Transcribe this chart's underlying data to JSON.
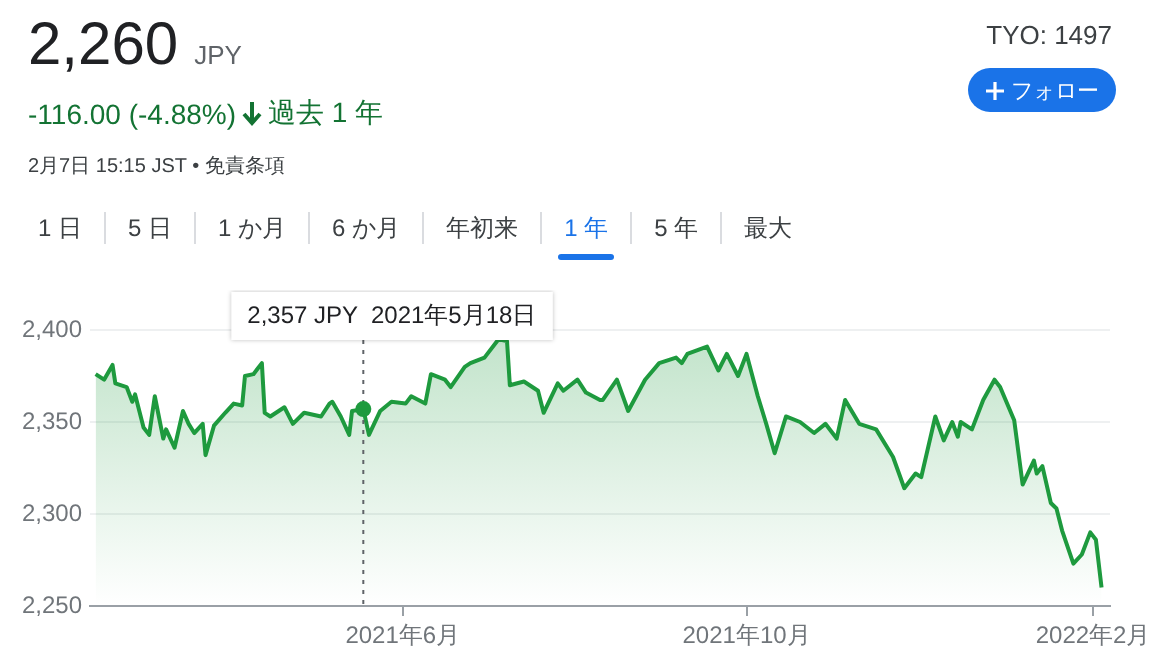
{
  "chart_data": {
    "type": "area",
    "title": "2,260",
    "annotations": [
      "JPY",
      "-116.00 (-4.88%)",
      "過去 1 年",
      "2月7日 15:15 JST • 免責条項",
      "TYO: 1497",
      "フォロー",
      "1 日",
      "5 日",
      "1 か月",
      "6 か月",
      "年初来",
      "1 年",
      "5 年",
      "最大"
    ],
    "ref_lines": [
      {
        "axis": "x",
        "value": "2021-05-18",
        "label": "2,357 JPY  2021年5月18日",
        "color": "#5f6368",
        "line_style": "dotted"
      }
    ],
    "x": [
      "2021-02-12",
      "2021-02-15",
      "2021-02-18",
      "2021-02-19",
      "2021-02-23",
      "2021-02-25",
      "2021-02-26",
      "2021-03-01",
      "2021-03-03",
      "2021-03-05",
      "2021-03-08",
      "2021-03-09",
      "2021-03-12",
      "2021-03-15",
      "2021-03-17",
      "2021-03-19",
      "2021-03-22",
      "2021-03-23",
      "2021-03-26",
      "2021-03-30",
      "2021-04-02",
      "2021-04-05",
      "2021-04-06",
      "2021-04-09",
      "2021-04-12",
      "2021-04-13",
      "2021-04-15",
      "2021-04-20",
      "2021-04-23",
      "2021-04-27",
      "2021-05-03",
      "2021-05-06",
      "2021-05-07",
      "2021-05-10",
      "2021-05-13",
      "2021-05-14",
      "2021-05-18",
      "2021-05-20",
      "2021-05-24",
      "2021-05-28",
      "2021-06-02",
      "2021-06-04",
      "2021-06-09",
      "2021-06-11",
      "2021-06-16",
      "2021-06-18",
      "2021-06-23",
      "2021-06-25",
      "2021-06-30",
      "2021-07-05",
      "2021-07-08",
      "2021-07-09",
      "2021-07-14",
      "2021-07-19",
      "2021-07-21",
      "2021-07-26",
      "2021-07-28",
      "2021-08-02",
      "2021-08-05",
      "2021-08-10",
      "2021-08-11",
      "2021-08-16",
      "2021-08-20",
      "2021-08-26",
      "2021-08-31",
      "2021-09-06",
      "2021-09-08",
      "2021-09-10",
      "2021-09-17",
      "2021-09-21",
      "2021-09-24",
      "2021-09-28",
      "2021-10-01",
      "2021-10-05",
      "2021-10-08",
      "2021-10-11",
      "2021-10-15",
      "2021-10-20",
      "2021-10-25",
      "2021-10-29",
      "2021-11-02",
      "2021-11-05",
      "2021-11-10",
      "2021-11-16",
      "2021-11-22",
      "2021-11-26",
      "2021-11-30",
      "2021-12-02",
      "2021-12-07",
      "2021-12-10",
      "2021-12-13",
      "2021-12-15",
      "2021-12-16",
      "2021-12-20",
      "2021-12-24",
      "2021-12-28",
      "2021-12-30",
      "2022-01-04",
      "2022-01-07",
      "2022-01-11",
      "2022-01-12",
      "2022-01-14",
      "2022-01-17",
      "2022-01-19",
      "2022-01-21",
      "2022-01-25",
      "2022-01-28",
      "2022-01-31",
      "2022-02-02",
      "2022-02-04"
    ],
    "series": [
      {
        "color": "#1e9a3e",
        "values": [
          2376,
          2373,
          2381,
          2371,
          2369,
          2361,
          2365,
          2347,
          2343,
          2364,
          2341,
          2346,
          2336,
          2356,
          2349,
          2344,
          2349,
          2332,
          2348,
          2355,
          2360,
          2359,
          2375,
          2376,
          2382,
          2355,
          2353,
          2358,
          2349,
          2355,
          2353,
          2360,
          2361,
          2353,
          2343,
          2356,
          2357,
          2343,
          2356,
          2361,
          2360,
          2364,
          2360,
          2376,
          2373,
          2369,
          2380,
          2382,
          2385,
          2395,
          2394,
          2370,
          2372,
          2367,
          2355,
          2371,
          2367,
          2373,
          2366,
          2362,
          2362,
          2373,
          2356,
          2373,
          2382,
          2385,
          2382,
          2387,
          2391,
          2378,
          2387,
          2375,
          2387,
          2364,
          2349,
          2333,
          2353,
          2350,
          2344,
          2349,
          2341,
          2362,
          2349,
          2346,
          2331,
          2314,
          2322,
          2320,
          2353,
          2340,
          2350,
          2342,
          2350,
          2346,
          2362,
          2373,
          2369,
          2351,
          2316,
          2329,
          2322,
          2326,
          2306,
          2303,
          2291,
          2273,
          2278,
          2290,
          2286,
          2260
        ]
      }
    ],
    "xlim": [
      "2021-02-10",
      "2022-02-07"
    ],
    "xticks": [
      {
        "value": "2021-06-01",
        "label": "2021年6月"
      },
      {
        "value": "2021-10-01",
        "label": "2021年10月"
      },
      {
        "value": "2022-02-01",
        "label": "2022年2月"
      }
    ],
    "ylim": [
      2250,
      2400
    ],
    "yticks": [
      {
        "value": 2250,
        "label": "2,250"
      },
      {
        "value": 2300,
        "label": "2,300"
      },
      {
        "value": 2350,
        "label": "2,350"
      },
      {
        "value": 2400,
        "label": "2,400"
      }
    ],
    "grid": "y",
    "legend": false,
    "marker": "none",
    "line_style": "solid"
  }
}
